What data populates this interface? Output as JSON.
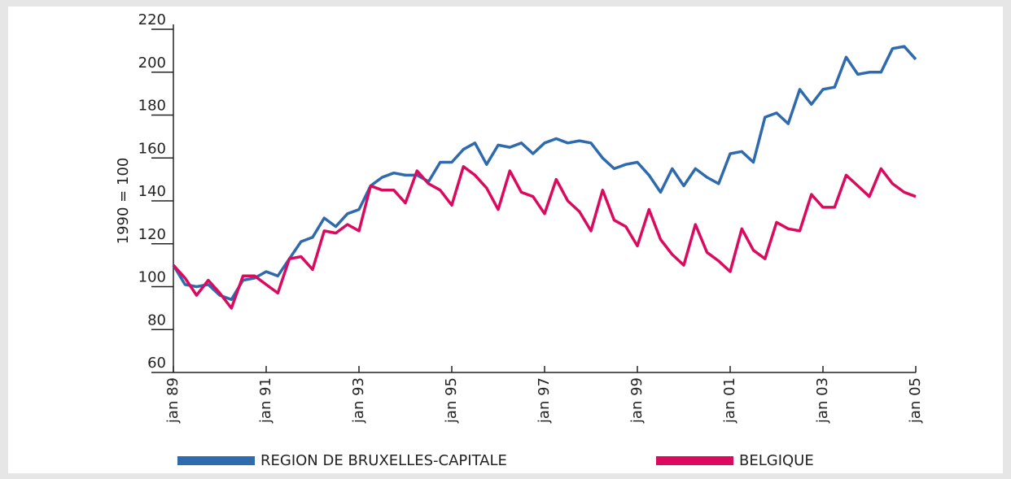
{
  "chart_data": {
    "type": "line",
    "y_label": "1990 = 100",
    "categories": [
      "jan 89",
      null,
      null,
      null,
      null,
      null,
      null,
      null,
      "jan 91",
      null,
      null,
      null,
      null,
      null,
      null,
      null,
      "jan 93",
      null,
      null,
      null,
      null,
      null,
      null,
      null,
      "jan 95",
      null,
      null,
      null,
      null,
      null,
      null,
      null,
      "jan 97",
      null,
      null,
      null,
      null,
      null,
      null,
      null,
      "jan 99",
      null,
      null,
      null,
      null,
      null,
      null,
      null,
      "jan 01",
      null,
      null,
      null,
      null,
      null,
      null,
      null,
      "jan 03",
      null,
      null,
      null,
      null,
      null,
      null,
      null,
      "jan 05"
    ],
    "series": [
      {
        "name": "REGION DE BRUXELLES-CAPITALE",
        "color": "#2e6aad",
        "values": [
          110,
          101,
          100,
          101,
          96,
          94,
          103,
          104,
          107,
          105,
          113,
          121,
          123,
          132,
          128,
          134,
          136,
          147,
          151,
          153,
          152,
          152,
          149,
          158,
          158,
          164,
          167,
          157,
          166,
          165,
          167,
          162,
          167,
          169,
          167,
          168,
          167,
          160,
          155,
          157,
          158,
          152,
          144,
          155,
          147,
          155,
          151,
          148,
          162,
          163,
          158,
          179,
          181,
          176,
          192,
          185,
          192,
          193,
          207,
          199,
          200,
          200,
          211,
          212,
          206
        ]
      },
      {
        "name": "BELGIQUE",
        "color": "#dc0a5f",
        "values": [
          110,
          104,
          96,
          103,
          97,
          90,
          105,
          105,
          101,
          97,
          113,
          114,
          108,
          126,
          125,
          129,
          126,
          147,
          145,
          145,
          139,
          154,
          148,
          145,
          138,
          156,
          152,
          146,
          136,
          154,
          144,
          142,
          134,
          150,
          140,
          135,
          126,
          145,
          131,
          128,
          119,
          136,
          122,
          115,
          110,
          129,
          116,
          112,
          107,
          127,
          117,
          113,
          130,
          127,
          126,
          143,
          137,
          137,
          152,
          147,
          142,
          155,
          148,
          144,
          142
        ]
      }
    ],
    "ylim": [
      60,
      220
    ],
    "yticks": [
      60,
      80,
      100,
      120,
      140,
      160,
      180,
      200,
      220
    ]
  }
}
